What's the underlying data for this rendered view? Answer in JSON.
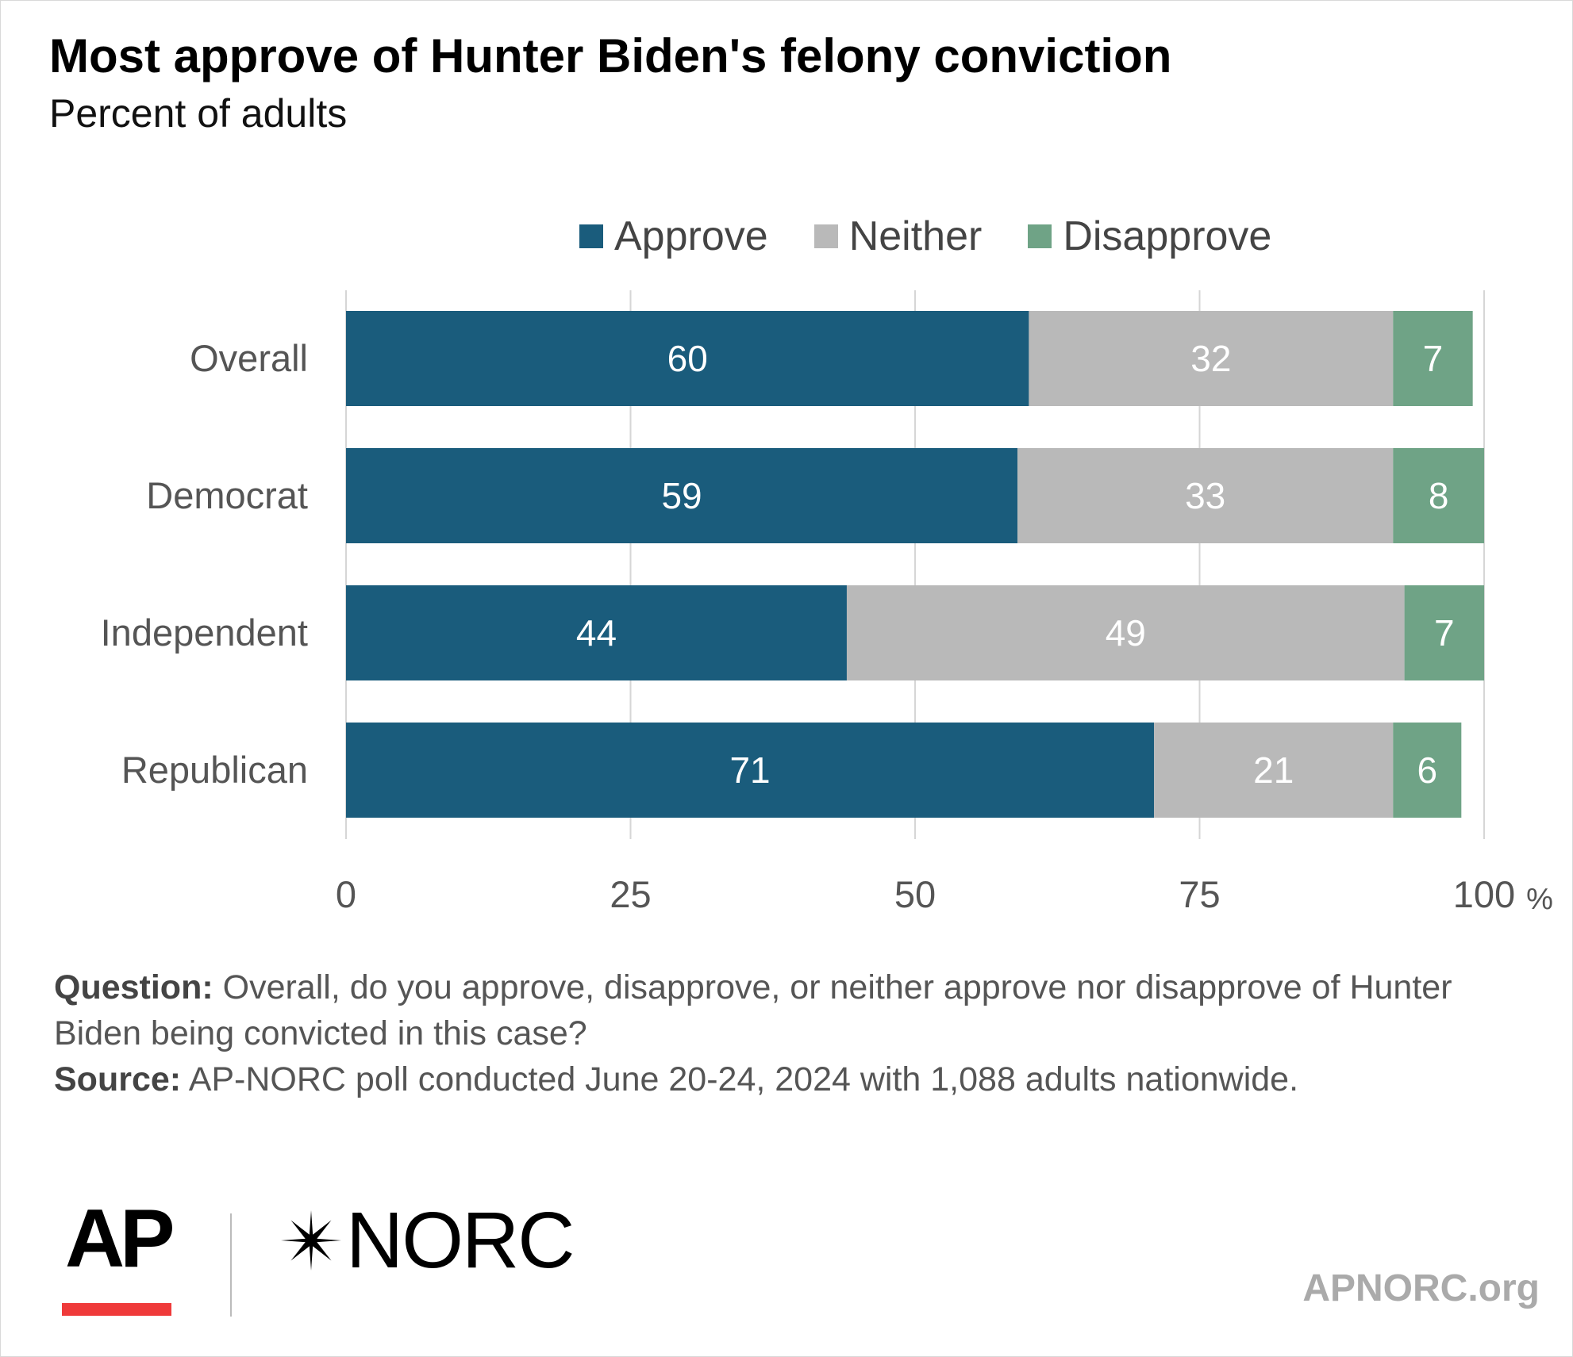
{
  "title": "Most approve of Hunter Biden's felony conviction",
  "subtitle": "Percent of adults",
  "legend": [
    {
      "label": "Approve",
      "color": "#1a5c7c"
    },
    {
      "label": "Neither",
      "color": "#b9b9b9"
    },
    {
      "label": "Disapprove",
      "color": "#6fa386"
    }
  ],
  "chart_data": {
    "type": "bar",
    "orientation": "horizontal",
    "stacked": true,
    "categories": [
      "Overall",
      "Democrat",
      "Independent",
      "Republican"
    ],
    "series": [
      {
        "name": "Approve",
        "color": "#1a5c7c",
        "values": [
          60,
          59,
          44,
          71
        ]
      },
      {
        "name": "Neither",
        "color": "#b9b9b9",
        "values": [
          32,
          33,
          49,
          21
        ]
      },
      {
        "name": "Disapprove",
        "color": "#6fa386",
        "values": [
          7,
          8,
          7,
          6
        ]
      }
    ],
    "xlim": [
      0,
      100
    ],
    "xticks": [
      "0",
      "25",
      "50",
      "75",
      "100"
    ],
    "x_unit": "%",
    "grid": true,
    "legend_position": "top"
  },
  "footnote": {
    "question_label": "Question:",
    "question_text": "Overall, do you approve, disapprove, or neither approve nor disapprove of Hunter Biden being convicted in this case?",
    "source_label": "Source:",
    "source_text": "AP-NORC poll conducted June 20-24, 2024 with 1,088 adults nationwide."
  },
  "branding": {
    "ap_logo": "AP",
    "norc_logo": "NORC",
    "norc_icon": "norc-star-icon",
    "website": "APNORC.org"
  }
}
